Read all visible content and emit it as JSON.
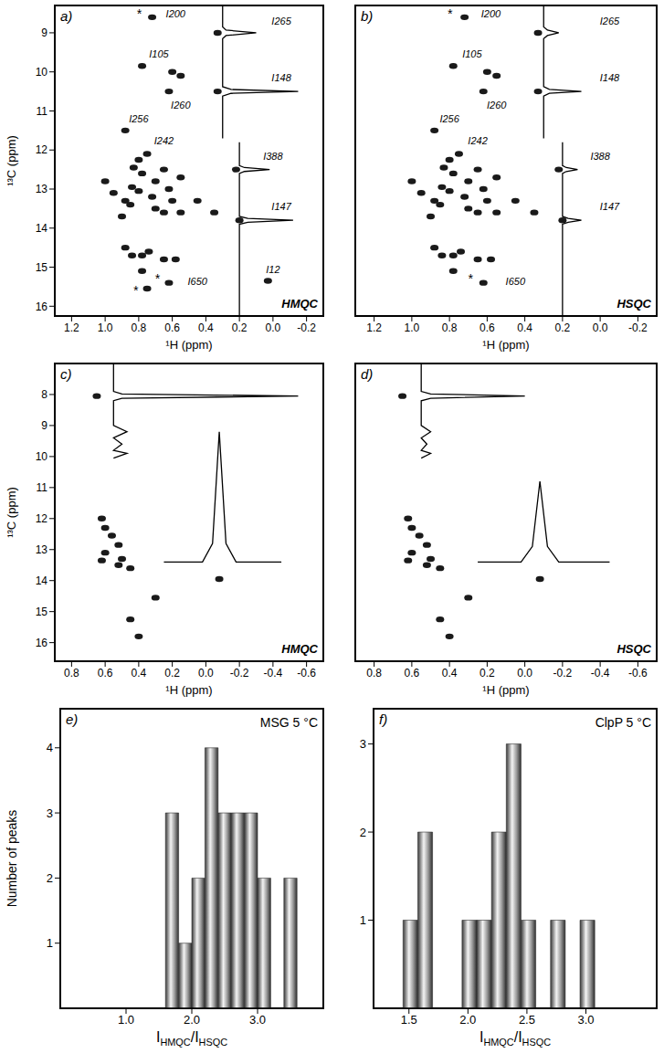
{
  "chart_data": [
    {
      "type": "scatter",
      "title": "a)",
      "subtitle": "HMQC",
      "xlabel": "¹H (ppm)",
      "ylabel": "¹³C (ppm)",
      "xlim": [
        1.3,
        -0.3
      ],
      "xticks": [
        1.2,
        {
          "value": 1,
          "label": "1.0"
        },
        0.8,
        0.6,
        0.4,
        0.2,
        {
          "value": 0,
          "label": "0.0"
        },
        -0.2
      ],
      "ylim": [
        16.25,
        8.3
      ],
      "yticks": [
        9,
        10,
        11,
        12,
        13,
        14,
        15,
        16
      ],
      "series": [
        {
          "type": "scatter",
          "marker": "ellipse",
          "color": "#1a1a1a",
          "x": [
            0.72,
            0.33,
            0.78,
            0.6,
            0.55,
            0.62,
            0.33,
            0.88,
            0.75,
            0.8,
            0.83,
            0.78,
            0.7,
            0.65,
            0.55,
            1.0,
            0.95,
            0.84,
            0.8,
            0.72,
            0.62,
            0.88,
            0.85,
            0.6,
            0.9,
            0.7,
            0.65,
            0.55,
            0.45,
            0.35,
            0.22,
            0.2,
            0.88,
            0.84,
            0.78,
            0.74,
            0.65,
            0.58,
            0.78,
            0.62,
            0.75,
            0.03
          ],
          "values": [
            8.6,
            9.0,
            9.85,
            10.0,
            10.1,
            10.5,
            10.5,
            11.5,
            12.1,
            12.25,
            12.45,
            12.6,
            12.8,
            12.5,
            12.7,
            12.8,
            13.1,
            12.95,
            13.05,
            13.2,
            13.0,
            13.3,
            13.4,
            13.3,
            13.7,
            13.5,
            13.6,
            13.6,
            13.3,
            13.6,
            12.5,
            13.8,
            14.5,
            14.7,
            14.7,
            14.6,
            14.8,
            14.8,
            15.1,
            15.4,
            15.55,
            15.35
          ]
        },
        {
          "type": "line",
          "color": "#000000",
          "x": [
            0.3,
            0.3,
            0.28,
            0.1,
            0.28,
            0.3,
            0.3,
            0.25,
            -0.15,
            0.25,
            0.3,
            0.3
          ],
          "values": [
            8.3,
            8.85,
            8.93,
            9.0,
            9.07,
            9.15,
            10.38,
            10.45,
            10.5,
            10.55,
            10.62,
            11.7
          ]
        },
        {
          "type": "line",
          "color": "#000000",
          "x": [
            0.2,
            0.2,
            0.17,
            0.02,
            0.17,
            0.2,
            0.2,
            0.15,
            -0.12,
            0.15,
            0.2,
            0.2
          ],
          "values": [
            11.8,
            12.4,
            12.45,
            12.5,
            12.55,
            12.6,
            13.7,
            13.75,
            13.8,
            13.85,
            13.9,
            16.25
          ]
        }
      ],
      "annotations": [
        {
          "text": "*",
          "x": 0.8,
          "y": 8.5
        },
        {
          "text": "I200",
          "x": 0.58,
          "y": 8.5
        },
        {
          "text": "I265",
          "x": -0.05,
          "y": 8.7
        },
        {
          "text": "I105",
          "x": 0.68,
          "y": 9.55
        },
        {
          "text": "I148",
          "x": -0.05,
          "y": 10.15
        },
        {
          "text": "I260",
          "x": 0.55,
          "y": 10.85
        },
        {
          "text": "I256",
          "x": 0.8,
          "y": 11.2
        },
        {
          "text": "I242",
          "x": 0.65,
          "y": 11.75
        },
        {
          "text": "I388",
          "x": 0.0,
          "y": 12.15
        },
        {
          "text": "I147",
          "x": -0.05,
          "y": 13.45
        },
        {
          "text": "*",
          "x": 0.69,
          "y": 15.28
        },
        {
          "text": "I650",
          "x": 0.45,
          "y": 15.35
        },
        {
          "text": "*",
          "x": 0.82,
          "y": 15.6
        },
        {
          "text": "I12",
          "x": 0.0,
          "y": 15.05
        }
      ]
    },
    {
      "type": "scatter",
      "title": "b)",
      "subtitle": "HSQC",
      "xlabel": "¹H (ppm)",
      "tick_labels": "x",
      "xlim": [
        1.3,
        -0.3
      ],
      "xticks": [
        1.2,
        {
          "value": 1,
          "label": "1.0"
        },
        0.8,
        0.6,
        0.4,
        0.2,
        {
          "value": 0,
          "label": "0.0"
        },
        -0.2
      ],
      "ylim": [
        16.25,
        8.3
      ],
      "yticks": [
        9,
        10,
        11,
        12,
        13,
        14,
        15,
        16
      ],
      "series": [
        {
          "type": "scatter",
          "marker": "ellipse",
          "color": "#1a1a1a",
          "x": [
            0.72,
            0.33,
            0.78,
            0.6,
            0.55,
            0.62,
            0.33,
            0.88,
            0.75,
            0.8,
            0.83,
            0.78,
            0.7,
            0.65,
            0.55,
            1.0,
            0.95,
            0.84,
            0.8,
            0.72,
            0.62,
            0.88,
            0.85,
            0.6,
            0.9,
            0.7,
            0.65,
            0.55,
            0.45,
            0.35,
            0.22,
            0.2,
            0.88,
            0.84,
            0.78,
            0.74,
            0.65,
            0.58,
            0.78,
            0.62
          ],
          "values": [
            8.6,
            9.0,
            9.85,
            10.0,
            10.1,
            10.5,
            10.5,
            11.5,
            12.1,
            12.25,
            12.45,
            12.6,
            12.8,
            12.5,
            12.7,
            12.8,
            13.1,
            12.95,
            13.05,
            13.2,
            13.0,
            13.3,
            13.4,
            13.3,
            13.7,
            13.5,
            13.6,
            13.6,
            13.3,
            13.6,
            12.5,
            13.8,
            14.5,
            14.7,
            14.7,
            14.6,
            14.8,
            14.8,
            15.1,
            15.4
          ]
        },
        {
          "type": "line",
          "color": "#000000",
          "x": [
            0.3,
            0.3,
            0.28,
            0.22,
            0.28,
            0.3,
            0.3,
            0.27,
            0.1,
            0.27,
            0.3,
            0.3
          ],
          "values": [
            8.3,
            8.85,
            8.93,
            9.0,
            9.07,
            9.15,
            10.38,
            10.45,
            10.5,
            10.55,
            10.62,
            11.7
          ]
        },
        {
          "type": "line",
          "color": "#000000",
          "x": [
            0.2,
            0.2,
            0.18,
            0.12,
            0.18,
            0.2,
            0.2,
            0.17,
            0.1,
            0.17,
            0.2,
            0.2
          ],
          "values": [
            11.8,
            12.4,
            12.45,
            12.5,
            12.55,
            12.6,
            13.7,
            13.75,
            13.8,
            13.85,
            13.9,
            16.25
          ]
        }
      ],
      "annotations": [
        {
          "text": "*",
          "x": 0.8,
          "y": 8.5
        },
        {
          "text": "I200",
          "x": 0.58,
          "y": 8.5
        },
        {
          "text": "I265",
          "x": -0.05,
          "y": 8.7
        },
        {
          "text": "I105",
          "x": 0.68,
          "y": 9.55
        },
        {
          "text": "I148",
          "x": -0.05,
          "y": 10.15
        },
        {
          "text": "I260",
          "x": 0.55,
          "y": 10.85
        },
        {
          "text": "I256",
          "x": 0.8,
          "y": 11.2
        },
        {
          "text": "I242",
          "x": 0.65,
          "y": 11.75
        },
        {
          "text": "I388",
          "x": 0.0,
          "y": 12.15
        },
        {
          "text": "I147",
          "x": -0.05,
          "y": 13.45
        },
        {
          "text": "*",
          "x": 0.69,
          "y": 15.28
        },
        {
          "text": "I650",
          "x": 0.45,
          "y": 15.35
        }
      ]
    },
    {
      "type": "scatter",
      "title": "c)",
      "subtitle": "HMQC",
      "xlabel": "¹H (ppm)",
      "ylabel": "¹³C (ppm)",
      "xlim": [
        0.9,
        -0.7
      ],
      "xticks": [
        0.8,
        0.6,
        0.4,
        0.2,
        {
          "value": 0,
          "label": "0.0"
        },
        -0.2,
        -0.4,
        -0.6
      ],
      "ylim": [
        16.6,
        7.0
      ],
      "yticks": [
        8,
        9,
        10,
        11,
        12,
        13,
        14,
        15,
        16
      ],
      "series": [
        {
          "type": "scatter",
          "marker": "ellipse",
          "color": "#1a1a1a",
          "x": [
            0.65,
            0.62,
            0.6,
            0.56,
            0.52,
            0.6,
            0.62,
            0.5,
            0.45,
            0.52,
            0.3,
            0.45,
            0.4,
            -0.08
          ],
          "values": [
            8.05,
            12.0,
            12.3,
            12.55,
            12.85,
            13.1,
            13.35,
            13.3,
            13.6,
            13.5,
            14.55,
            15.25,
            15.8,
            13.95
          ]
        },
        {
          "type": "line",
          "color": "#000000",
          "x": [
            0.55,
            0.55,
            0.5,
            -0.55,
            0.5,
            0.55,
            0.55,
            0.47,
            0.55,
            0.5,
            0.55,
            0.47,
            0.55
          ],
          "values": [
            7.0,
            7.9,
            7.98,
            8.05,
            8.12,
            8.2,
            9.0,
            9.2,
            9.4,
            9.6,
            9.8,
            9.9,
            10.05
          ]
        },
        {
          "type": "line",
          "color": "#000000",
          "x": [
            0.25,
            0.02,
            -0.04,
            -0.08,
            -0.12,
            -0.18,
            -0.45
          ],
          "values": [
            13.4,
            13.4,
            12.8,
            9.2,
            12.8,
            13.4,
            13.4
          ]
        }
      ]
    },
    {
      "type": "scatter",
      "title": "d)",
      "subtitle": "HSQC",
      "xlabel": "¹H (ppm)",
      "tick_labels": "x",
      "xlim": [
        0.9,
        -0.7
      ],
      "xticks": [
        0.8,
        0.6,
        0.4,
        0.2,
        {
          "value": 0,
          "label": "0.0"
        },
        -0.2,
        -0.4,
        -0.6
      ],
      "ylim": [
        16.6,
        7.0
      ],
      "yticks": [
        8,
        9,
        10,
        11,
        12,
        13,
        14,
        15,
        16
      ],
      "series": [
        {
          "type": "scatter",
          "marker": "ellipse",
          "color": "#1a1a1a",
          "x": [
            0.65,
            0.62,
            0.6,
            0.56,
            0.52,
            0.6,
            0.62,
            0.5,
            0.45,
            0.52,
            0.3,
            0.45,
            0.4,
            -0.08
          ],
          "values": [
            8.05,
            12.0,
            12.3,
            12.55,
            12.85,
            13.1,
            13.35,
            13.3,
            13.6,
            13.5,
            14.55,
            15.25,
            15.8,
            13.95
          ]
        },
        {
          "type": "line",
          "color": "#000000",
          "x": [
            0.55,
            0.55,
            0.5,
            0.0,
            0.5,
            0.55,
            0.55,
            0.5,
            0.55,
            0.52,
            0.55,
            0.5,
            0.55
          ],
          "values": [
            7.0,
            7.9,
            7.98,
            8.05,
            8.12,
            8.2,
            9.0,
            9.2,
            9.4,
            9.6,
            9.8,
            9.9,
            10.05
          ]
        },
        {
          "type": "line",
          "color": "#000000",
          "x": [
            0.25,
            0.02,
            -0.04,
            -0.08,
            -0.12,
            -0.18,
            -0.45
          ],
          "values": [
            13.4,
            13.4,
            12.9,
            10.8,
            12.9,
            13.4,
            13.4
          ]
        }
      ]
    },
    {
      "type": "histogram",
      "title": "e)",
      "subtitle": "MSG 5 °C",
      "xlabel": "IHMQC/IHSQC",
      "ylabel": "Number of peaks",
      "bins": [
        1.6,
        1.8,
        2.0,
        2.2,
        2.4,
        2.6,
        2.8,
        3.0,
        3.2,
        3.4,
        3.6
      ],
      "counts": [
        3,
        1,
        2,
        4,
        3,
        3,
        3,
        2,
        0,
        2
      ],
      "color": "#9a9a9a",
      "xlim": [
        0,
        4
      ],
      "xticks": [
        {
          "value": 1,
          "label": "1.0"
        },
        {
          "value": 2,
          "label": "2.0"
        },
        {
          "value": 3,
          "label": "3.0"
        }
      ],
      "ylim": [
        0,
        4.6
      ],
      "yticks": [
        1,
        2,
        3,
        4
      ]
    },
    {
      "type": "histogram",
      "title": "f)",
      "subtitle": "ClpP 5 °C",
      "xlabel": "IHMQC/IHSQC",
      "bins": [
        1.45,
        1.575,
        1.7,
        1.825,
        1.95,
        2.075,
        2.2,
        2.325,
        2.45,
        2.575,
        2.7,
        2.825,
        2.95,
        3.075
      ],
      "counts": [
        1,
        2,
        0,
        0,
        1,
        1,
        2,
        3,
        1,
        0,
        1,
        0,
        1
      ],
      "color": "#9a9a9a",
      "xlim": [
        1.2,
        3.6
      ],
      "xticks": [
        1.5,
        {
          "value": 2,
          "label": "2.0"
        },
        2.5,
        {
          "value": 3,
          "label": "3.0"
        }
      ],
      "ylim": [
        0,
        3.4
      ],
      "yticks": [
        1,
        2,
        3
      ]
    }
  ]
}
